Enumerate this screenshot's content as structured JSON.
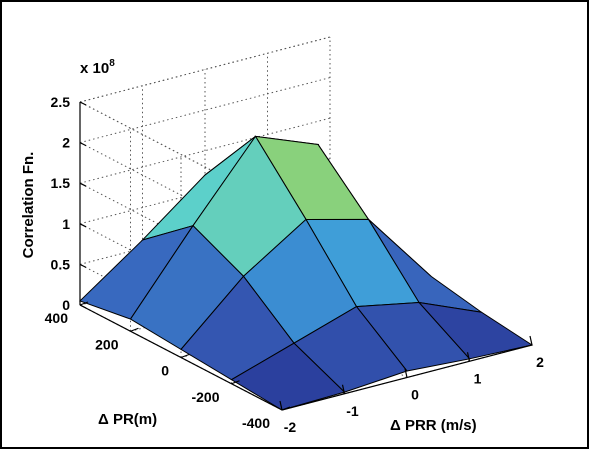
{
  "chart_data": {
    "type": "surface",
    "title": "",
    "xlabel": "Δ PRR (m/s)",
    "ylabel": "Δ PR(m)",
    "zlabel": "Correlation Fn.",
    "z_exponent_label": "x 10",
    "z_exponent_power": "8",
    "x_ticks": [
      "-2",
      "-1",
      "0",
      "1",
      "2"
    ],
    "y_ticks": [
      "400",
      "200",
      "0",
      "-200",
      "-400"
    ],
    "z_ticks": [
      "0",
      "0.5",
      "1",
      "1.5",
      "2",
      "2.5"
    ],
    "xlim": [
      -2,
      2
    ],
    "ylim": [
      -400,
      400
    ],
    "zlim": [
      0,
      2.5
    ],
    "z_scale": 100000000,
    "grid": true,
    "x": [
      -2,
      -1,
      0,
      1,
      2
    ],
    "y": [
      -400,
      -200,
      0,
      200,
      400
    ],
    "z": [
      [
        0.0,
        0.02,
        0.08,
        0.03,
        0.0
      ],
      [
        0.05,
        0.3,
        0.55,
        0.4,
        0.08
      ],
      [
        0.1,
        0.8,
        1.3,
        1.1,
        0.2
      ],
      [
        0.15,
        1.1,
        2.0,
        1.7,
        0.3
      ],
      [
        0.05,
        0.6,
        1.2,
        0.9,
        0.1
      ]
    ]
  }
}
